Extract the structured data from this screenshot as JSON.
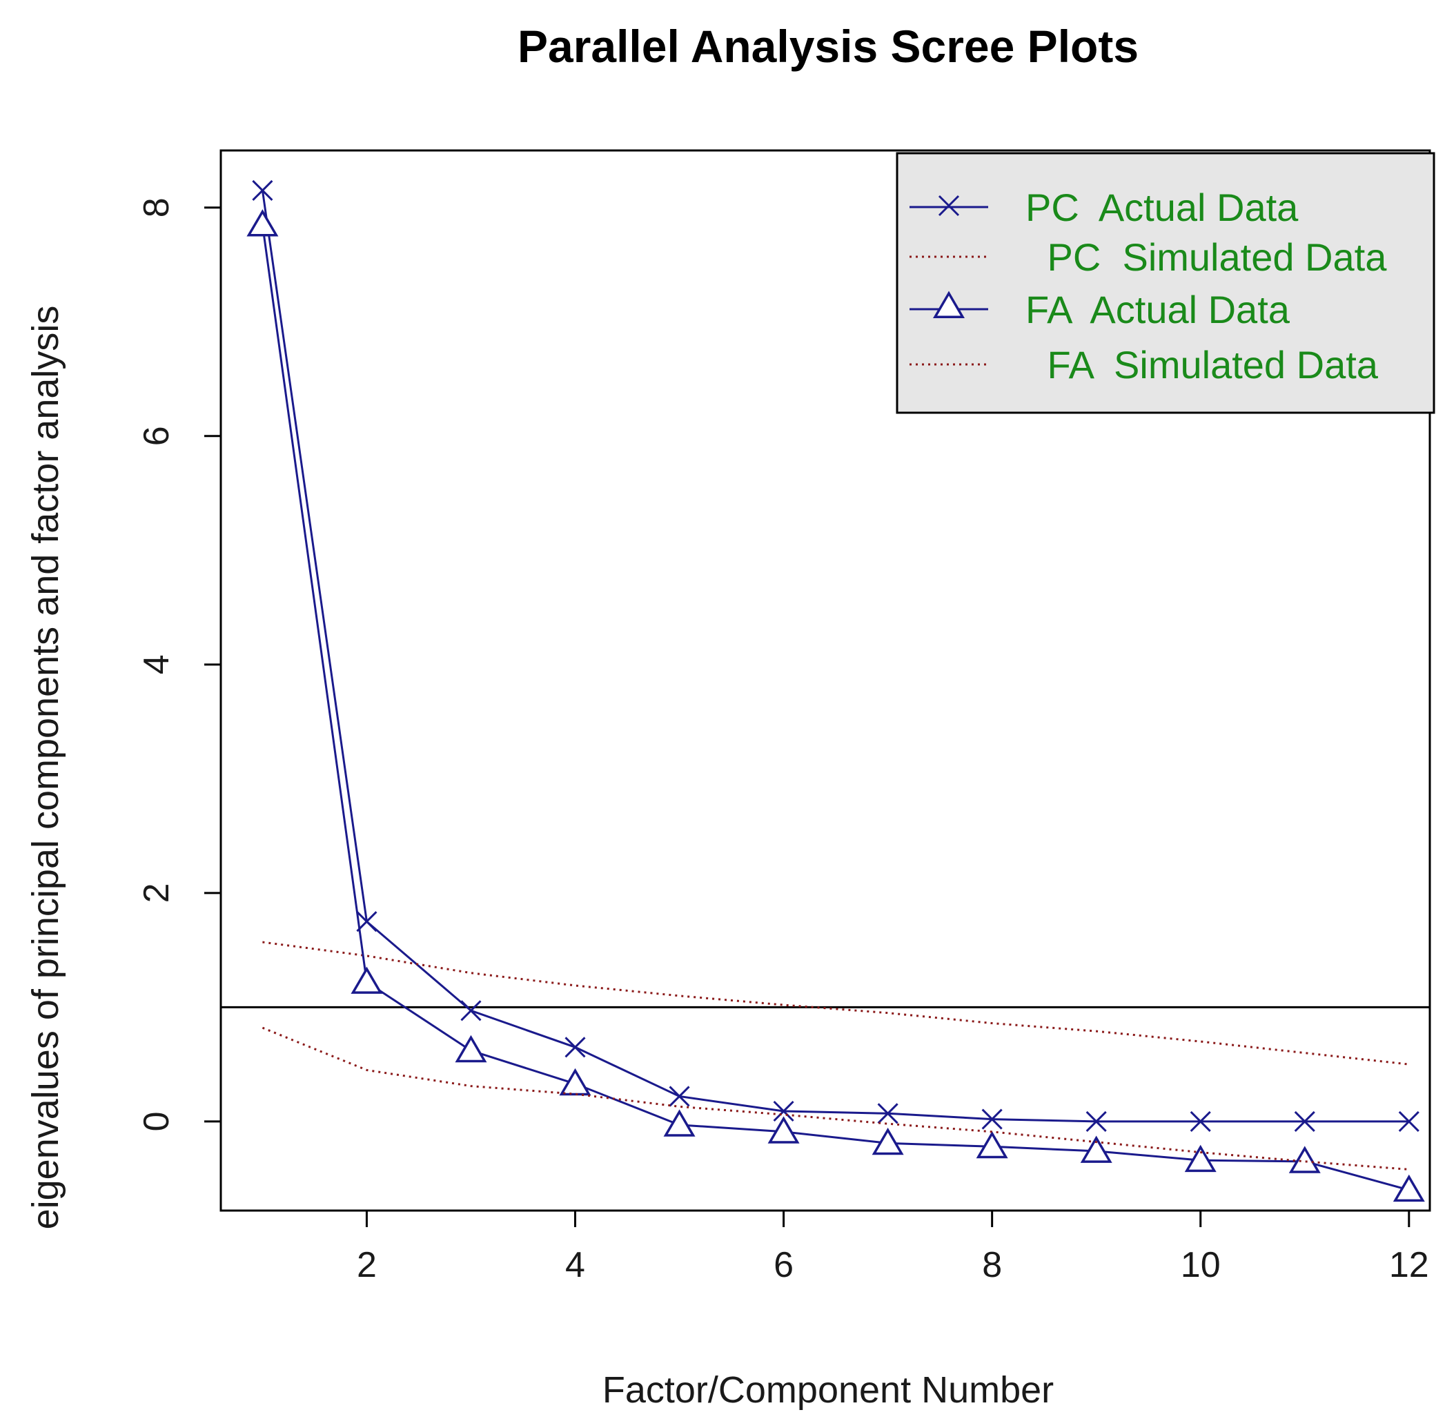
{
  "chart_data": {
    "type": "line",
    "title": "Parallel Analysis Scree Plots",
    "xlabel": "Factor/Component Number",
    "ylabel": "eigenvalues of principal components and factor analysis",
    "xlim": [
      0.6,
      12.2
    ],
    "ylim": [
      -0.78,
      8.5
    ],
    "x_ticks": [
      2,
      4,
      6,
      8,
      10,
      12
    ],
    "y_ticks": [
      0,
      2,
      4,
      6,
      8
    ],
    "reference_line": 1,
    "grid": false,
    "legend_position": "top-right",
    "x": [
      1,
      2,
      3,
      4,
      5,
      6,
      7,
      8,
      9,
      10,
      11,
      12
    ],
    "series": [
      {
        "name": "PC  Actual Data",
        "color": "#1a1a8c",
        "line": "solid",
        "marker": "x",
        "values": [
          8.15,
          1.75,
          0.97,
          0.65,
          0.22,
          0.09,
          0.07,
          0.02,
          0.0,
          0.0,
          0.0,
          0.0
        ]
      },
      {
        "name": " PC  Simulated Data",
        "color": "#8b1a1a",
        "line": "dotted",
        "marker": "none",
        "values": [
          1.57,
          1.45,
          1.3,
          1.19,
          1.1,
          1.02,
          0.95,
          0.86,
          0.79,
          0.7,
          0.6,
          0.5
        ]
      },
      {
        "name": "FA  Actual Data",
        "color": "#1a1a8c",
        "line": "solid",
        "marker": "triangle",
        "values": [
          7.85,
          1.22,
          0.62,
          0.33,
          -0.03,
          -0.09,
          -0.19,
          -0.22,
          -0.26,
          -0.34,
          -0.35,
          -0.6
        ]
      },
      {
        "name": " FA  Simulated Data",
        "color": "#8b1a1a",
        "line": "dotted",
        "marker": "none",
        "values": [
          0.82,
          0.45,
          0.31,
          0.24,
          0.13,
          0.06,
          -0.02,
          -0.09,
          -0.18,
          -0.27,
          -0.35,
          -0.42
        ]
      }
    ]
  }
}
